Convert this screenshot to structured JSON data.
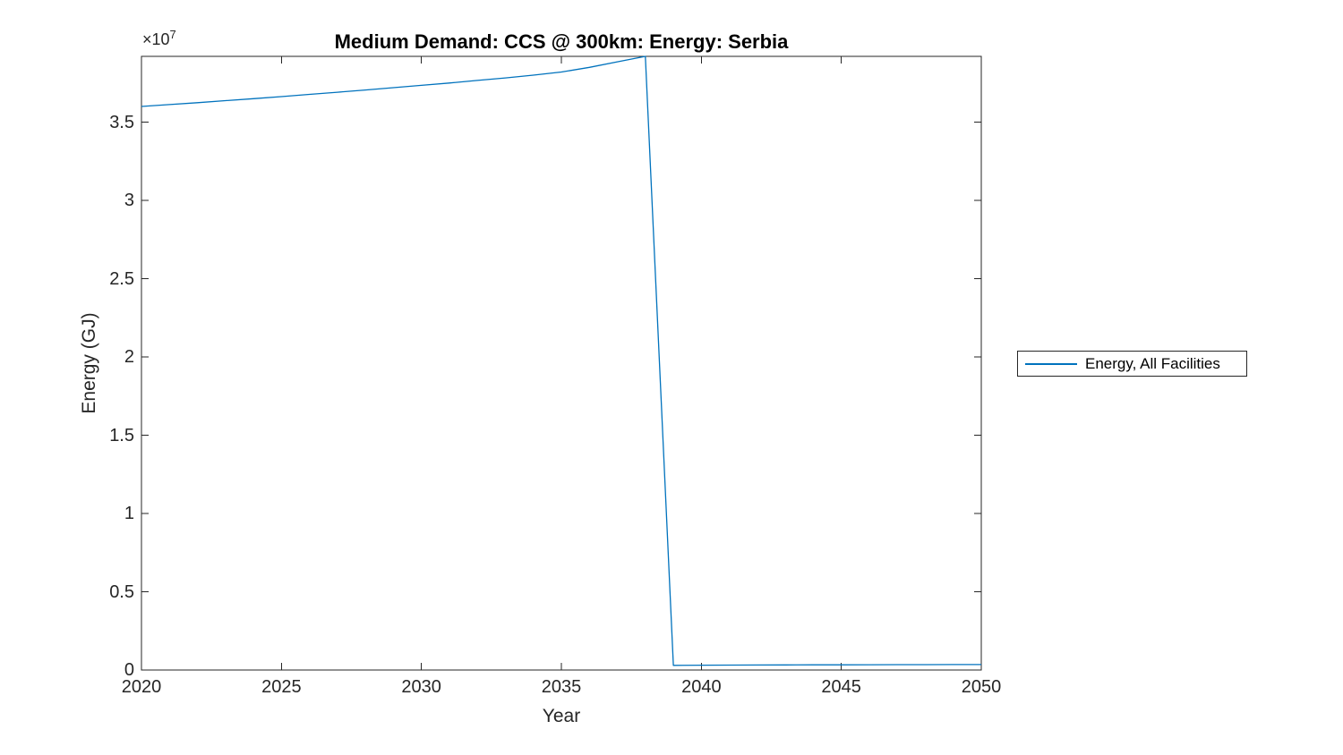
{
  "figure": {
    "background_color": "#ffffff",
    "axis_color": "#262626",
    "accent_color": "#0072BD"
  },
  "chart_data": {
    "type": "line",
    "title": "Medium Demand: CCS @ 300km: Energy: Serbia",
    "xlabel": "Year",
    "ylabel": "Energy (GJ)",
    "exponent": {
      "base": "×10",
      "power": "7"
    },
    "grid": false,
    "legend_position": "outside-right",
    "xlim": [
      2020,
      2050
    ],
    "ylim": [
      0,
      39200000
    ],
    "x_tick_values": [
      2020,
      2025,
      2030,
      2035,
      2040,
      2045,
      2050
    ],
    "x_tick_labels": [
      "2020",
      "2025",
      "2030",
      "2035",
      "2040",
      "2045",
      "2050"
    ],
    "y_tick_values": [
      0,
      5000000,
      10000000,
      15000000,
      20000000,
      25000000,
      30000000,
      35000000
    ],
    "y_tick_labels": [
      "0",
      "0.5",
      "1",
      "1.5",
      "2",
      "2.5",
      "3",
      "3.5"
    ],
    "series": [
      {
        "name": "Energy, All Facilities",
        "color": "#0072BD",
        "x": [
          2020,
          2021,
          2022,
          2023,
          2024,
          2025,
          2026,
          2027,
          2028,
          2029,
          2030,
          2031,
          2032,
          2033,
          2034,
          2035,
          2036,
          2037,
          2038,
          2039,
          2040,
          2041,
          2042,
          2043,
          2044,
          2045,
          2046,
          2047,
          2048,
          2049,
          2050
        ],
        "y": [
          36000000,
          36120000,
          36240000,
          36370000,
          36500000,
          36630000,
          36770000,
          36910000,
          37050000,
          37200000,
          37350000,
          37500000,
          37660000,
          37820000,
          38000000,
          38200000,
          38500000,
          38850000,
          39200000,
          300000,
          310000,
          315000,
          320000,
          325000,
          330000,
          330000,
          335000,
          340000,
          345000,
          350000,
          350000
        ]
      }
    ]
  }
}
